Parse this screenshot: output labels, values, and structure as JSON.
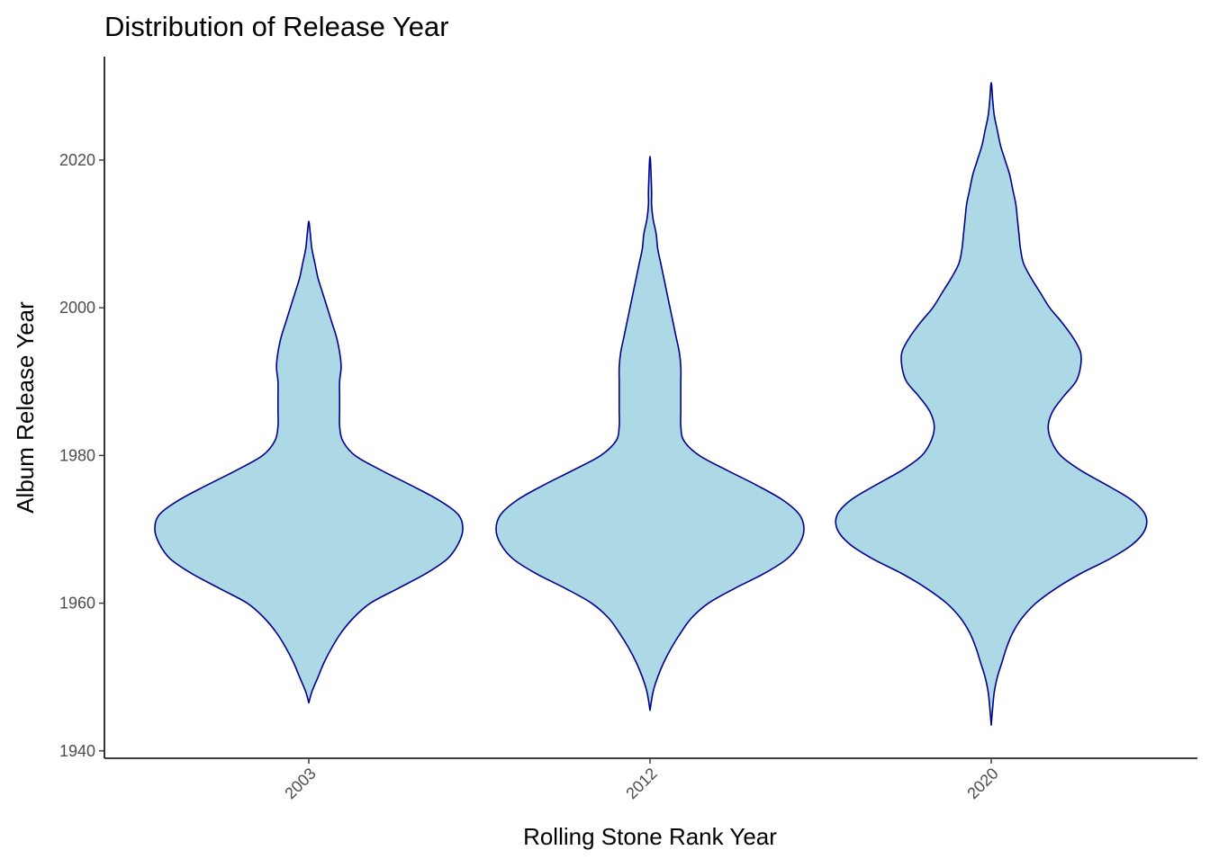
{
  "chart_data": {
    "type": "violin",
    "title": "Distribution of Release Year",
    "xlabel": "Rolling Stone Rank Year",
    "ylabel": "Album Release Year",
    "categories": [
      "2003",
      "2012",
      "2020"
    ],
    "ylim": [
      1939,
      2034
    ],
    "yticks": [
      1940,
      1960,
      1980,
      2000,
      2020
    ],
    "fill_color": "#ADD8E6",
    "line_color": "#00008B",
    "grid": false,
    "legend": "none",
    "series": [
      {
        "category": "2003",
        "min": 1946.5,
        "max": 2011.7,
        "density": [
          [
            1946.5,
            0.0
          ],
          [
            1948,
            0.02
          ],
          [
            1950,
            0.06
          ],
          [
            1952,
            0.1
          ],
          [
            1954,
            0.15
          ],
          [
            1956,
            0.21
          ],
          [
            1958,
            0.29
          ],
          [
            1960,
            0.4
          ],
          [
            1962,
            0.58
          ],
          [
            1964,
            0.76
          ],
          [
            1966,
            0.9
          ],
          [
            1968,
            0.97
          ],
          [
            1970,
            1.0
          ],
          [
            1972,
            0.97
          ],
          [
            1974,
            0.84
          ],
          [
            1976,
            0.66
          ],
          [
            1978,
            0.47
          ],
          [
            1980,
            0.3
          ],
          [
            1982,
            0.22
          ],
          [
            1984,
            0.2
          ],
          [
            1986,
            0.2
          ],
          [
            1988,
            0.2
          ],
          [
            1990,
            0.2
          ],
          [
            1992,
            0.21
          ],
          [
            1994,
            0.2
          ],
          [
            1996,
            0.18
          ],
          [
            1998,
            0.15
          ],
          [
            2000,
            0.12
          ],
          [
            2002,
            0.09
          ],
          [
            2004,
            0.06
          ],
          [
            2006,
            0.04
          ],
          [
            2008,
            0.02
          ],
          [
            2010,
            0.01
          ],
          [
            2011.7,
            0.0
          ]
        ]
      },
      {
        "category": "2012",
        "min": 1945.5,
        "max": 2020.5,
        "density": [
          [
            1945.5,
            0.0
          ],
          [
            1948,
            0.02
          ],
          [
            1950,
            0.05
          ],
          [
            1952,
            0.09
          ],
          [
            1954,
            0.14
          ],
          [
            1956,
            0.2
          ],
          [
            1958,
            0.27
          ],
          [
            1960,
            0.38
          ],
          [
            1962,
            0.55
          ],
          [
            1964,
            0.74
          ],
          [
            1966,
            0.89
          ],
          [
            1968,
            0.97
          ],
          [
            1970,
            1.0
          ],
          [
            1972,
            0.97
          ],
          [
            1974,
            0.86
          ],
          [
            1976,
            0.69
          ],
          [
            1978,
            0.5
          ],
          [
            1980,
            0.32
          ],
          [
            1982,
            0.22
          ],
          [
            1984,
            0.2
          ],
          [
            1986,
            0.2
          ],
          [
            1988,
            0.2
          ],
          [
            1990,
            0.2
          ],
          [
            1992,
            0.2
          ],
          [
            1994,
            0.19
          ],
          [
            1996,
            0.17
          ],
          [
            1998,
            0.15
          ],
          [
            2000,
            0.13
          ],
          [
            2002,
            0.11
          ],
          [
            2004,
            0.09
          ],
          [
            2006,
            0.07
          ],
          [
            2008,
            0.05
          ],
          [
            2010,
            0.04
          ],
          [
            2012,
            0.02
          ],
          [
            2014,
            0.01
          ],
          [
            2016,
            0.01
          ],
          [
            2020.5,
            0.0
          ]
        ]
      },
      {
        "category": "2020",
        "min": 1943.5,
        "max": 2030.5,
        "density": [
          [
            1943.5,
            0.0
          ],
          [
            1946,
            0.01
          ],
          [
            1948,
            0.02
          ],
          [
            1950,
            0.04
          ],
          [
            1952,
            0.07
          ],
          [
            1954,
            0.1
          ],
          [
            1956,
            0.14
          ],
          [
            1958,
            0.2
          ],
          [
            1960,
            0.29
          ],
          [
            1962,
            0.42
          ],
          [
            1964,
            0.58
          ],
          [
            1966,
            0.77
          ],
          [
            1968,
            0.92
          ],
          [
            1970,
            1.0
          ],
          [
            1972,
            1.0
          ],
          [
            1974,
            0.91
          ],
          [
            1976,
            0.75
          ],
          [
            1978,
            0.58
          ],
          [
            1980,
            0.45
          ],
          [
            1982,
            0.39
          ],
          [
            1984,
            0.37
          ],
          [
            1986,
            0.4
          ],
          [
            1988,
            0.47
          ],
          [
            1990,
            0.55
          ],
          [
            1992,
            0.58
          ],
          [
            1994,
            0.58
          ],
          [
            1996,
            0.53
          ],
          [
            1998,
            0.46
          ],
          [
            2000,
            0.38
          ],
          [
            2002,
            0.32
          ],
          [
            2004,
            0.26
          ],
          [
            2006,
            0.21
          ],
          [
            2008,
            0.19
          ],
          [
            2010,
            0.18
          ],
          [
            2012,
            0.17
          ],
          [
            2014,
            0.16
          ],
          [
            2016,
            0.14
          ],
          [
            2018,
            0.12
          ],
          [
            2020,
            0.09
          ],
          [
            2022,
            0.06
          ],
          [
            2024,
            0.04
          ],
          [
            2026,
            0.02
          ],
          [
            2028,
            0.01
          ],
          [
            2030.5,
            0.0
          ]
        ]
      }
    ]
  }
}
